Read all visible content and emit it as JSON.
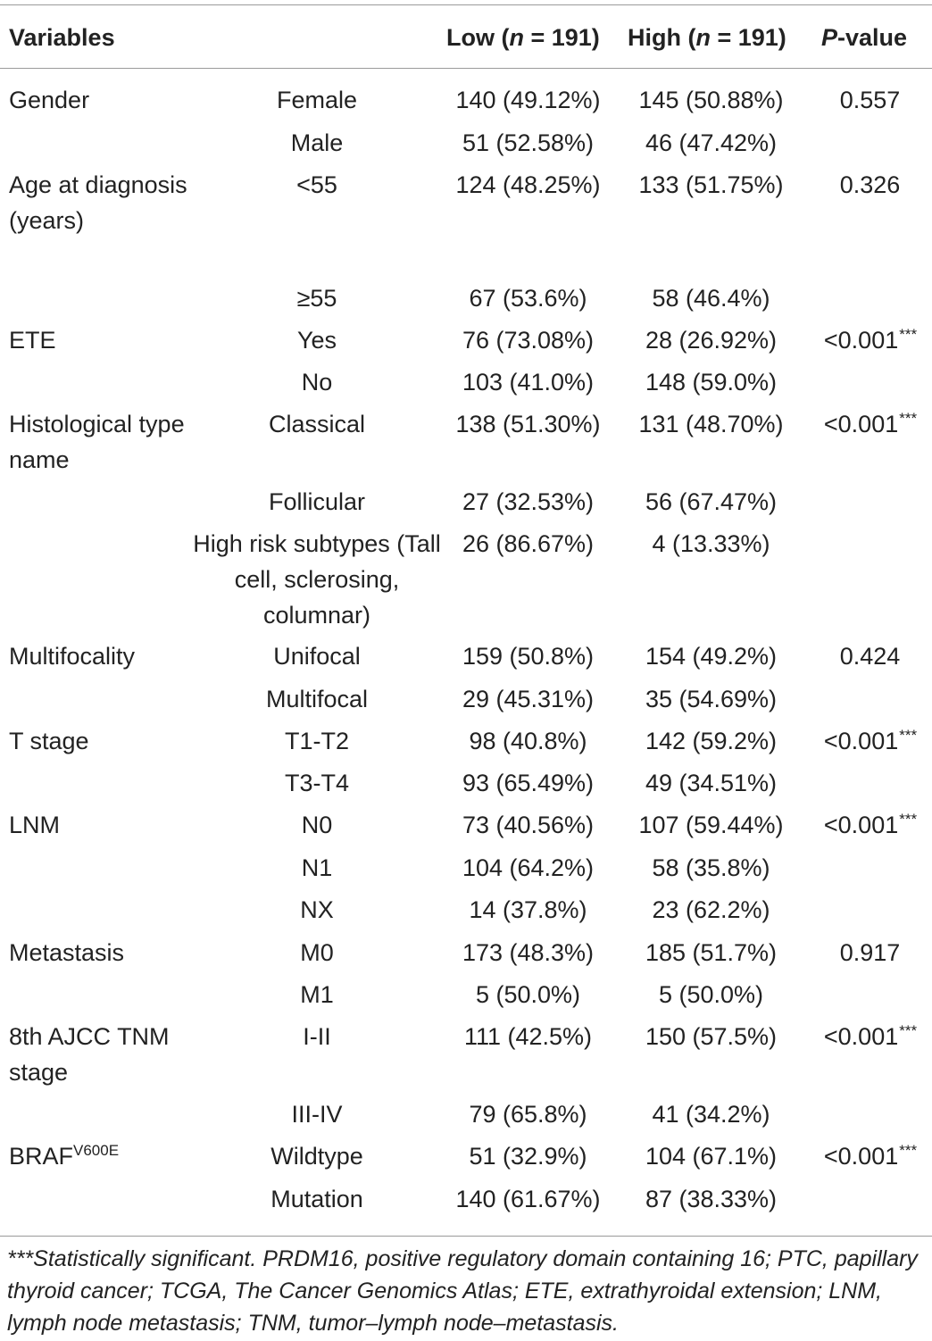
{
  "header": {
    "variables": "Variables",
    "low_pre": "Low (",
    "low_n": "n",
    "low_post": " = 191)",
    "high_pre": "High (",
    "high_n": "n",
    "high_post": " = 191)",
    "p_italic": "P",
    "p_post": "-value"
  },
  "rows": [
    {
      "variable": "Gender",
      "category": "Female",
      "low": "140 (49.12%)",
      "high": "145 (50.88%)",
      "p": "0.557",
      "sig": ""
    },
    {
      "variable": "",
      "category": "Male",
      "low": "51 (52.58%)",
      "high": "46 (47.42%)",
      "p": "",
      "sig": ""
    },
    {
      "variable": "Age at diagnosis (years)",
      "category": "<55",
      "low": "124 (48.25%)",
      "high": "133 (51.75%)",
      "p": "0.326",
      "sig": ""
    },
    {
      "variable": "",
      "category": "≥55",
      "low": "67 (53.6%)",
      "high": "58 (46.4%)",
      "p": "",
      "sig": ""
    },
    {
      "variable": "ETE",
      "category": "Yes",
      "low": "76 (73.08%)",
      "high": "28 (26.92%)",
      "p": "<0.001",
      "sig": "***"
    },
    {
      "variable": "",
      "category": "No",
      "low": "103 (41.0%)",
      "high": "148 (59.0%)",
      "p": "",
      "sig": ""
    },
    {
      "variable": "Histological type name",
      "category": "Classical",
      "low": "138 (51.30%)",
      "high": "131 (48.70%)",
      "p": "<0.001",
      "sig": "***"
    },
    {
      "variable": "",
      "category": "Follicular",
      "low": "27 (32.53%)",
      "high": "56 (67.47%)",
      "p": "",
      "sig": ""
    },
    {
      "variable": "",
      "category": "High risk subtypes (Tall cell, sclerosing, columnar)",
      "low": "26 (86.67%)",
      "high": "4 (13.33%)",
      "p": "",
      "sig": ""
    },
    {
      "variable": "Multifocality",
      "category": "Unifocal",
      "low": "159 (50.8%)",
      "high": "154 (49.2%)",
      "p": "0.424",
      "sig": ""
    },
    {
      "variable": "",
      "category": "Multifocal",
      "low": "29 (45.31%)",
      "high": "35 (54.69%)",
      "p": "",
      "sig": ""
    },
    {
      "variable": "T stage",
      "category": "T1-T2",
      "low": "98 (40.8%)",
      "high": "142 (59.2%)",
      "p": "<0.001",
      "sig": "***"
    },
    {
      "variable": "",
      "category": "T3-T4",
      "low": "93 (65.49%)",
      "high": "49 (34.51%)",
      "p": "",
      "sig": ""
    },
    {
      "variable": "LNM",
      "category": "N0",
      "low": "73 (40.56%)",
      "high": "107 (59.44%)",
      "p": "<0.001",
      "sig": "***"
    },
    {
      "variable": "",
      "category": "N1",
      "low": "104 (64.2%)",
      "high": "58 (35.8%)",
      "p": "",
      "sig": ""
    },
    {
      "variable": "",
      "category": "NX",
      "low": "14 (37.8%)",
      "high": "23 (62.2%)",
      "p": "",
      "sig": ""
    },
    {
      "variable": "Metastasis",
      "category": "M0",
      "low": "173 (48.3%)",
      "high": "185 (51.7%)",
      "p": "0.917",
      "sig": ""
    },
    {
      "variable": "",
      "category": "M1",
      "low": "5 (50.0%)",
      "high": "5 (50.0%)",
      "p": "",
      "sig": ""
    },
    {
      "variable": "8th AJCC TNM stage",
      "category": "I-II",
      "low": "111 (42.5%)",
      "high": "150 (57.5%)",
      "p": "<0.001",
      "sig": "***"
    },
    {
      "variable": "",
      "category": "III-IV",
      "low": "79 (65.8%)",
      "high": "41 (34.2%)",
      "p": "",
      "sig": ""
    },
    {
      "variable": "BRAF",
      "variable_sup": "V600E",
      "category": "Wildtype",
      "low": "51 (32.9%)",
      "high": "104 (67.1%)",
      "p": "<0.001",
      "sig": "***"
    },
    {
      "variable": "",
      "category": "Mutation",
      "low": "140 (61.67%)",
      "high": "87 (38.33%)",
      "p": "",
      "sig": ""
    }
  ],
  "footnote": "***Statistically significant. PRDM16, positive regulatory domain containing 16; PTC, papillary thyroid cancer; TCGA, The Cancer Genomics Atlas; ETE, extrathyroidal extension; LNM, lymph node metastasis; TNM, tumor–lymph node–metastasis."
}
